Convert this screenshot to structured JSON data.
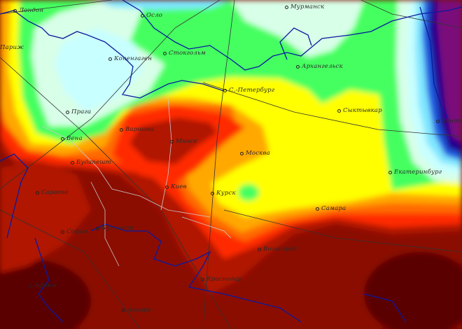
{
  "map": {
    "colors": {
      "darkest": "#5a0000",
      "maroon": "#8b1000",
      "darkred": "#b01800",
      "red": "#ff2a00",
      "orange_red": "#ff6a00",
      "orange": "#ffa800",
      "yellow": "#ffff00",
      "green": "#44ff60",
      "pale_green": "#d8ffe8",
      "light_cyan": "#c8ffff",
      "cyan": "#7fe6ff",
      "blue": "#1a5ce0",
      "dark_blue": "#200090",
      "purple": "#7a0a7a",
      "coastline": "#0a1aa0",
      "border": "#c8c8c8"
    },
    "cities": [
      {
        "name": "Лондон"
      },
      {
        "name": "Осло"
      },
      {
        "name": "Мурманск"
      },
      {
        "name": "Париж"
      },
      {
        "name": "Копенгаген"
      },
      {
        "name": "Стокгольм"
      },
      {
        "name": "Архангельск"
      },
      {
        "name": "С.-Петербург"
      },
      {
        "name": "Прага"
      },
      {
        "name": "Варшава"
      },
      {
        "name": "Сыктывкар"
      },
      {
        "name": "Ханты-М"
      },
      {
        "name": "Вена"
      },
      {
        "name": "Минск"
      },
      {
        "name": "Москва"
      },
      {
        "name": "Будапешт"
      },
      {
        "name": "Екатеринбург"
      },
      {
        "name": "Сараево"
      },
      {
        "name": "Киев"
      },
      {
        "name": "Курск"
      },
      {
        "name": "Самара"
      },
      {
        "name": "София"
      },
      {
        "name": "Бухарест"
      },
      {
        "name": "Волгоград"
      },
      {
        "name": "Афины"
      },
      {
        "name": "Краснодар"
      },
      {
        "name": "Анкара"
      }
    ]
  }
}
